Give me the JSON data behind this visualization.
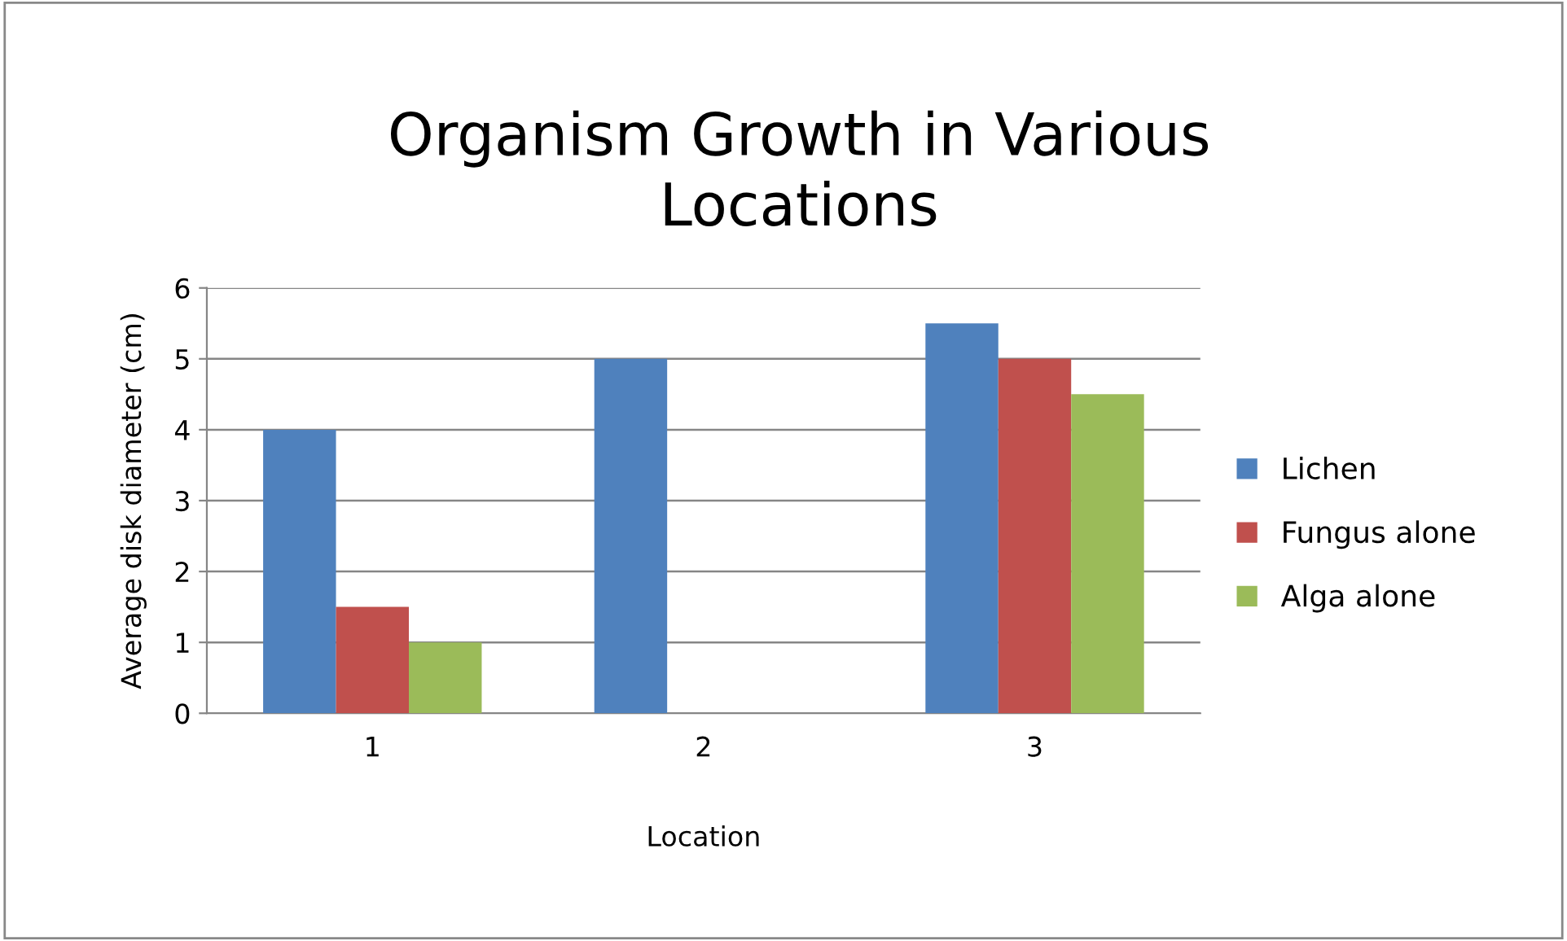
{
  "chart_data": {
    "type": "bar",
    "title": "Organism Growth in Various\nLocations",
    "xlabel": "Location",
    "ylabel": "Average disk diameter (cm)",
    "categories": [
      "1",
      "2",
      "3"
    ],
    "series": [
      {
        "name": "Lichen",
        "color": "#4f81bd",
        "values": [
          4,
          5,
          5.5
        ]
      },
      {
        "name": "Fungus alone",
        "color": "#c0504d",
        "values": [
          1.5,
          0,
          5
        ]
      },
      {
        "name": "Alga alone",
        "color": "#9bbb59",
        "values": [
          1,
          0,
          4.5
        ]
      }
    ],
    "ylim": [
      0,
      6
    ],
    "yticks": [
      0,
      1,
      2,
      3,
      4,
      5,
      6
    ],
    "grid": "y",
    "legend": "right"
  }
}
